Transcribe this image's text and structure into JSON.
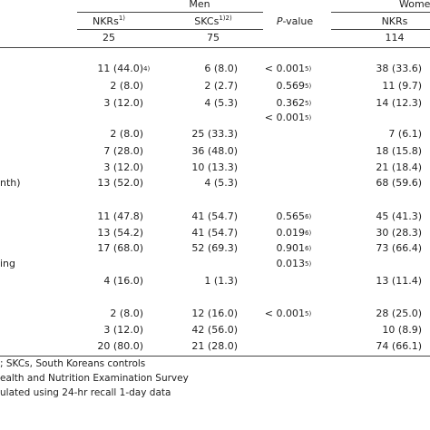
{
  "header": {
    "group_men": "Men",
    "group_women": "Women",
    "col_nkr_m": "NKRs",
    "col_nkr_m_sup": "1)",
    "col_skc_m": "SKCs",
    "col_skc_m_sup": "1)2)",
    "col_p_italic": "P",
    "col_p": "-value",
    "col_nkr_w": "NKRs",
    "n_nkr_m": "25",
    "n_skc_m": "75",
    "n_nkr_w": "114"
  },
  "rows": [
    {
      "nkr_m": "11 (44.0)",
      "nkr_m_sup": "4)",
      "skc_m": "6 (8.0)",
      "p": "< 0.001",
      "p_sup": "5)",
      "nkr_w": "38 (33.6)"
    },
    {
      "nkr_m": "2 (8.0)",
      "skc_m": "2 (2.7)",
      "p": "0.569",
      "p_sup": "5)",
      "nkr_w": "11 (9.7)"
    },
    {
      "nkr_m": "3 (12.0)",
      "skc_m": "4 (5.3)",
      "p": "0.362",
      "p_sup": "5)",
      "nkr_w": "14 (12.3)"
    },
    {
      "p": "< 0.001",
      "p_sup": "5)"
    },
    {
      "nkr_m": "2 (8.0)",
      "skc_m": "25 (33.3)",
      "nkr_w": "7 (6.1)"
    },
    {
      "nkr_m": "7 (28.0)",
      "skc_m": "36 (48.0)",
      "nkr_w": "18 (15.8)"
    },
    {
      "nkr_m": "3 (12.0)",
      "skc_m": "10 (13.3)",
      "nkr_w": "21 (18.4)"
    },
    {
      "label": "nth)",
      "nkr_m": "13 (52.0)",
      "skc_m": "4 (5.3)",
      "nkr_w": "68 (59.6)"
    },
    {
      "nkr_m": "11 (47.8)",
      "skc_m": "41 (54.7)",
      "p": "0.565",
      "p_sup": "6)",
      "nkr_w": "45 (41.3)"
    },
    {
      "nkr_m": "13 (54.2)",
      "skc_m": "41 (54.7)",
      "p": "0.019",
      "p_sup": "6)",
      "nkr_w": "30 (28.3)"
    },
    {
      "nkr_m": "17 (68.0)",
      "skc_m": "52 (69.3)",
      "p": "0.901",
      "p_sup": "6)",
      "nkr_w": "73 (66.4)"
    },
    {
      "label": "ing",
      "p": "0.013",
      "p_sup": "5)"
    },
    {
      "nkr_m": "4 (16.0)",
      "skc_m": "1 (1.3)",
      "nkr_w": "13 (11.4)"
    },
    {
      "nkr_m": "2 (8.0)",
      "skc_m": "12 (16.0)",
      "p": "< 0.001",
      "p_sup": "5)",
      "nkr_w": "28 (25.0)"
    },
    {
      "nkr_m": "3 (12.0)",
      "skc_m": "42 (56.0)",
      "nkr_w": "10 (8.9)"
    },
    {
      "nkr_m": "20 (80.0)",
      "skc_m": "21 (28.0)",
      "nkr_w": "74 (66.1)"
    }
  ],
  "footnotes": [
    ";  SKCs, South Koreans controls",
    "ealth and Nutrition Examination Survey",
    "ulated using 24-hr recall 1-day data"
  ]
}
